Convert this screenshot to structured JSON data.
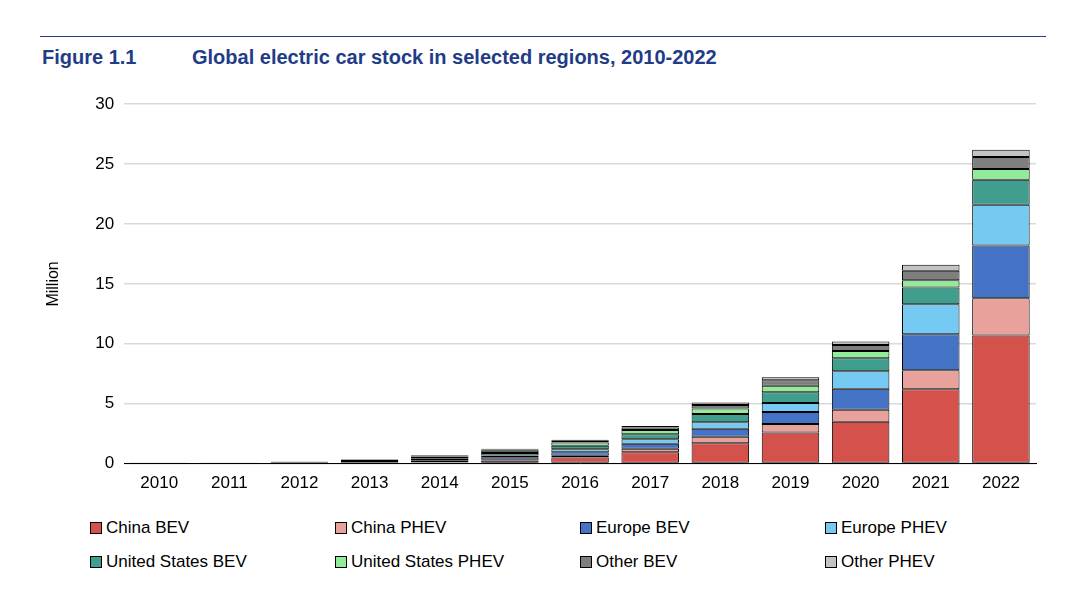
{
  "chart_data": {
    "type": "bar",
    "figure": "Figure 1.1",
    "title": "Global electric car stock in selected regions, 2010-2022",
    "y_label": "Million",
    "categories": [
      "2010",
      "2011",
      "2012",
      "2013",
      "2014",
      "2015",
      "2016",
      "2017",
      "2018",
      "2019",
      "2020",
      "2021",
      "2022"
    ],
    "series": [
      {
        "name": "China BEV",
        "color": "#d4524b",
        "values": [
          0.01,
          0.01,
          0.02,
          0.03,
          0.08,
          0.25,
          0.5,
          0.95,
          1.7,
          2.6,
          3.5,
          6.2,
          10.7
        ]
      },
      {
        "name": "China PHEV",
        "color": "#e8a19b",
        "values": [
          0.0,
          0.0,
          0.0,
          0.01,
          0.03,
          0.08,
          0.15,
          0.28,
          0.55,
          0.7,
          1.0,
          1.6,
          3.1
        ]
      },
      {
        "name": "Europe BEV",
        "color": "#4472c4",
        "values": [
          0.002,
          0.01,
          0.03,
          0.06,
          0.12,
          0.2,
          0.29,
          0.43,
          0.65,
          1.0,
          1.75,
          3.0,
          4.4
        ]
      },
      {
        "name": "Europe PHEV",
        "color": "#75caf4",
        "values": [
          0.0,
          0.0,
          0.01,
          0.03,
          0.08,
          0.15,
          0.26,
          0.38,
          0.55,
          0.75,
          1.45,
          2.5,
          3.4
        ]
      },
      {
        "name": "United States BEV",
        "color": "#3f9e8e",
        "values": [
          0.004,
          0.01,
          0.03,
          0.08,
          0.14,
          0.21,
          0.3,
          0.42,
          0.7,
          0.9,
          1.1,
          1.4,
          2.1
        ]
      },
      {
        "name": "United States PHEV",
        "color": "#90ec98",
        "values": [
          0.0,
          0.01,
          0.04,
          0.09,
          0.15,
          0.19,
          0.27,
          0.34,
          0.45,
          0.55,
          0.6,
          0.6,
          0.9
        ]
      },
      {
        "name": "Other BEV",
        "color": "#7f7f7f",
        "values": [
          0.003,
          0.01,
          0.03,
          0.05,
          0.07,
          0.1,
          0.14,
          0.21,
          0.3,
          0.45,
          0.5,
          0.8,
          1.0
        ]
      },
      {
        "name": "Other PHEV",
        "color": "#c3c3c3",
        "values": [
          0.0,
          0.0,
          0.01,
          0.02,
          0.04,
          0.06,
          0.09,
          0.12,
          0.2,
          0.25,
          0.3,
          0.5,
          0.6
        ]
      }
    ],
    "stacked": true,
    "ylim": [
      0,
      30
    ],
    "yticks": [
      0,
      5,
      10,
      15,
      20,
      25,
      30
    ],
    "grid": true,
    "legend": "bottom"
  }
}
